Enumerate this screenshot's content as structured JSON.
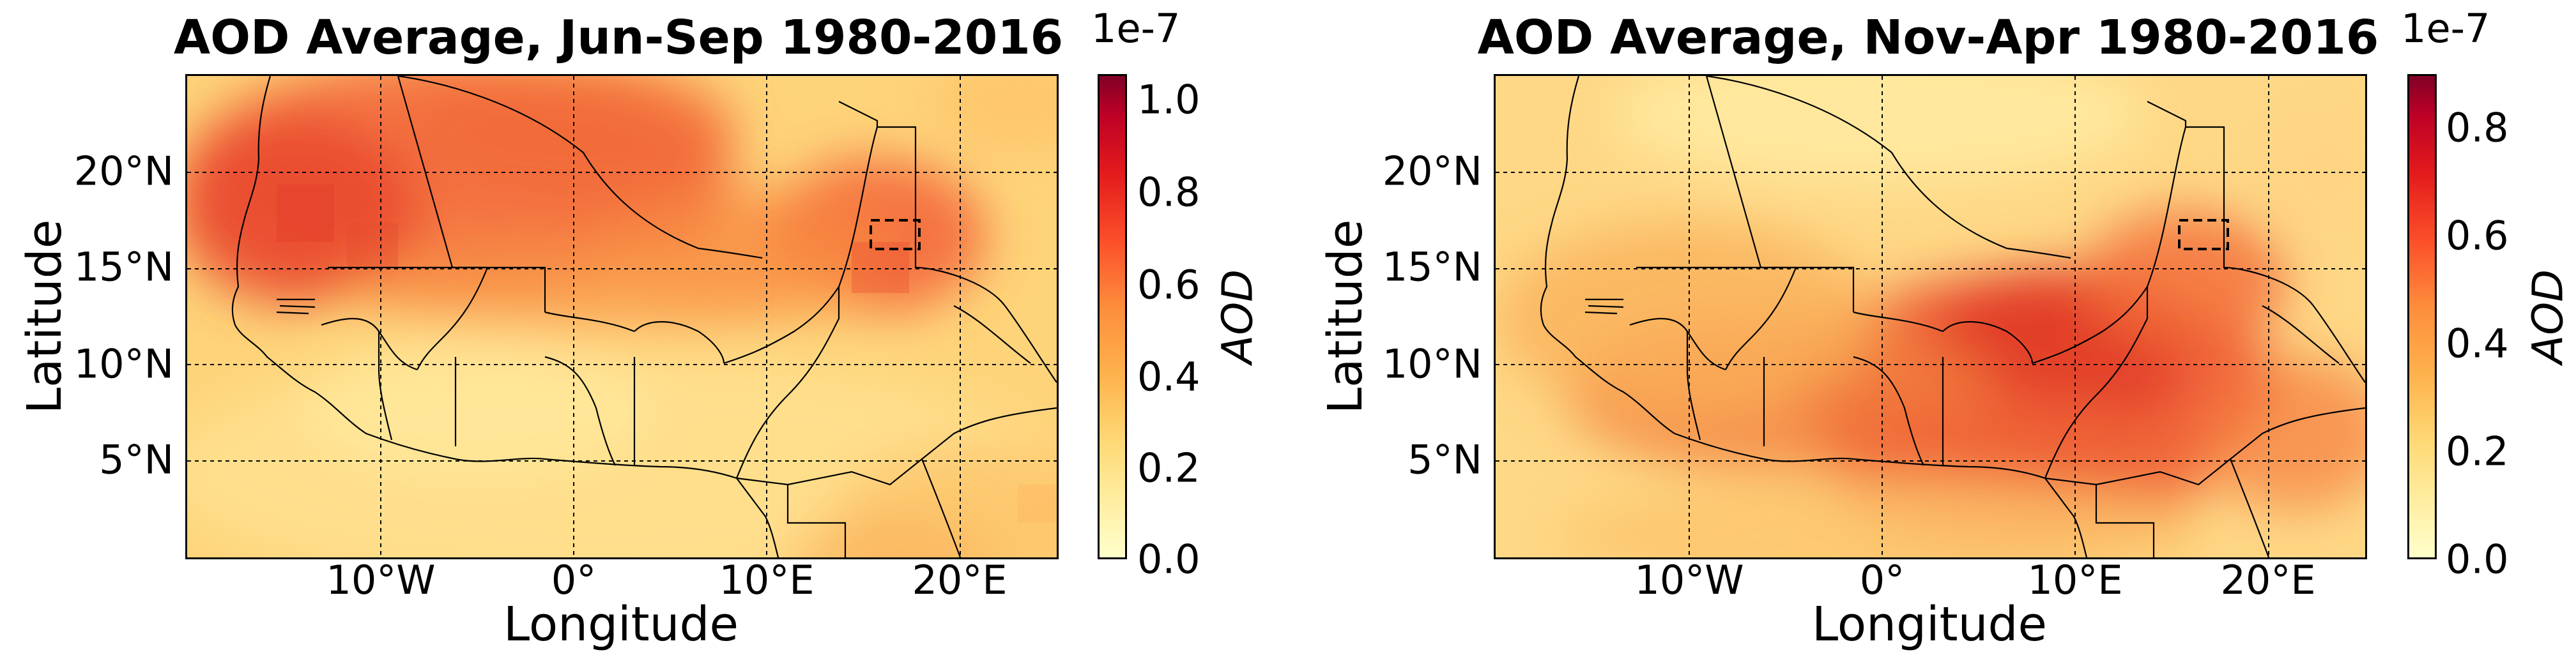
{
  "panels": [
    {
      "title": "AOD Average, Jun-Sep 1980-2016",
      "xlabel": "Longitude",
      "ylabel": "Latitude",
      "xticks": [
        "10°W",
        "0°",
        "10°E",
        "20°E"
      ],
      "yticks": [
        "20°N",
        "15°N",
        "10°N",
        "5°N"
      ],
      "colorbar": {
        "label": "AOD",
        "exponent": "1e-7",
        "ticks": [
          "1.0",
          "0.8",
          "0.6",
          "0.4",
          "0.2",
          "0.0"
        ],
        "max": 1.05
      }
    },
    {
      "title": "AOD Average, Nov-Apr 1980-2016",
      "xlabel": "Longitude",
      "ylabel": "Latitude",
      "xticks": [
        "10°W",
        "0°",
        "10°E",
        "20°E"
      ],
      "yticks": [
        "20°N",
        "15°N",
        "10°N",
        "5°N"
      ],
      "colorbar": {
        "label": "AOD",
        "exponent": "1e-7",
        "ticks": [
          "0.8",
          "0.6",
          "0.4",
          "0.2",
          "0.0"
        ],
        "max": 0.9
      }
    }
  ],
  "map_extent": {
    "lon": [
      -20,
      25
    ],
    "lat": [
      0,
      25
    ]
  },
  "study_box": {
    "lon": [
      15.5,
      18
    ],
    "lat": [
      16,
      17.5
    ]
  },
  "colormap": [
    "#ffffcc",
    "#ffeda0",
    "#fed976",
    "#feb24c",
    "#fd8d3c",
    "#fc4e2a",
    "#e31a1c",
    "#bd0026",
    "#800026"
  ]
}
